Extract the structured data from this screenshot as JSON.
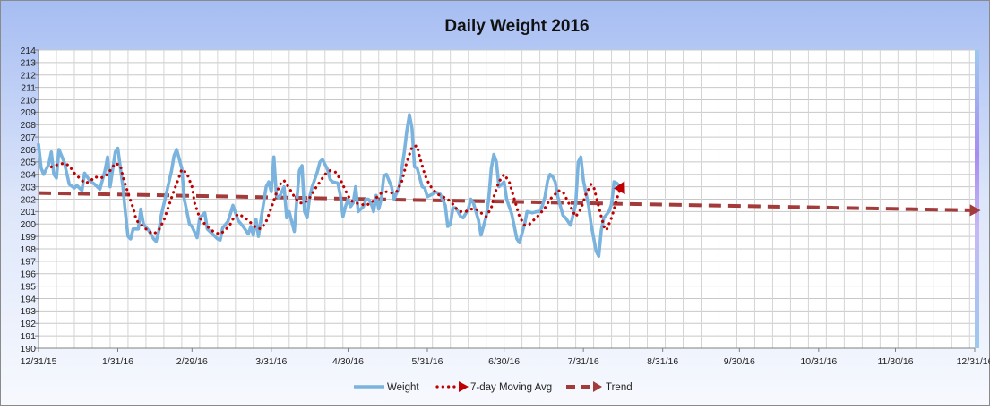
{
  "chart_data": {
    "type": "line",
    "title": "Daily Weight 2016",
    "xlabel": "",
    "ylabel": "",
    "ylim": [
      190,
      214
    ],
    "y_ticks": [
      190,
      191,
      192,
      193,
      194,
      195,
      196,
      197,
      198,
      199,
      200,
      201,
      202,
      203,
      204,
      205,
      206,
      207,
      208,
      209,
      210,
      211,
      212,
      213,
      214
    ],
    "x_range_days": [
      0,
      366
    ],
    "x_ticks": [
      {
        "label": "12/31/15",
        "day": 0
      },
      {
        "label": "1/31/16",
        "day": 31
      },
      {
        "label": "2/29/16",
        "day": 60
      },
      {
        "label": "3/31/16",
        "day": 91
      },
      {
        "label": "4/30/16",
        "day": 121
      },
      {
        "label": "5/31/16",
        "day": 152
      },
      {
        "label": "6/30/16",
        "day": 182
      },
      {
        "label": "7/31/16",
        "day": 213
      },
      {
        "label": "8/31/16",
        "day": 244
      },
      {
        "label": "9/30/16",
        "day": 274
      },
      {
        "label": "10/31/16",
        "day": 305
      },
      {
        "label": "11/30/16",
        "day": 335
      },
      {
        "label": "12/31/16",
        "day": 366
      }
    ],
    "grid": true,
    "legend_position": "bottom",
    "series": [
      {
        "name": "Weight",
        "style": "solid",
        "color": "#7ab3dd",
        "points": [
          [
            0,
            206.4
          ],
          [
            1,
            204.5
          ],
          [
            2,
            204.0
          ],
          [
            4,
            204.8
          ],
          [
            5,
            205.8
          ],
          [
            6,
            204.0
          ],
          [
            7,
            203.7
          ],
          [
            8,
            206.0
          ],
          [
            10,
            205.0
          ],
          [
            12,
            203.2
          ],
          [
            14,
            202.9
          ],
          [
            15,
            203.1
          ],
          [
            17,
            202.7
          ],
          [
            18,
            204.1
          ],
          [
            20,
            203.5
          ],
          [
            22,
            203.2
          ],
          [
            24,
            202.8
          ],
          [
            26,
            204.3
          ],
          [
            27,
            205.4
          ],
          [
            28,
            203.0
          ],
          [
            30,
            205.8
          ],
          [
            31,
            206.1
          ],
          [
            33,
            203.0
          ],
          [
            34,
            200.8
          ],
          [
            35,
            199.0
          ],
          [
            36,
            198.8
          ],
          [
            37,
            199.6
          ],
          [
            39,
            199.6
          ],
          [
            40,
            201.2
          ],
          [
            41,
            200.0
          ],
          [
            43,
            199.5
          ],
          [
            45,
            198.8
          ],
          [
            46,
            198.6
          ],
          [
            47,
            199.4
          ],
          [
            48,
            200.7
          ],
          [
            50,
            202.5
          ],
          [
            52,
            204.3
          ],
          [
            53,
            205.5
          ],
          [
            54,
            206.0
          ],
          [
            56,
            204.5
          ],
          [
            57,
            202.0
          ],
          [
            59,
            200.0
          ],
          [
            60,
            199.8
          ],
          [
            62,
            198.9
          ],
          [
            63,
            200.5
          ],
          [
            65,
            200.9
          ],
          [
            66,
            199.6
          ],
          [
            68,
            199.2
          ],
          [
            69,
            199.0
          ],
          [
            70,
            198.8
          ],
          [
            71,
            198.7
          ],
          [
            72,
            199.7
          ],
          [
            74,
            200.2
          ],
          [
            75,
            200.8
          ],
          [
            76,
            201.5
          ],
          [
            78,
            200.3
          ],
          [
            80,
            199.8
          ],
          [
            82,
            199.2
          ],
          [
            83,
            199.8
          ],
          [
            84,
            199.1
          ],
          [
            85,
            200.4
          ],
          [
            86,
            199.0
          ],
          [
            87,
            200.4
          ],
          [
            89,
            203.0
          ],
          [
            90,
            203.4
          ],
          [
            91,
            202.6
          ],
          [
            92,
            205.4
          ],
          [
            93,
            202.3
          ],
          [
            94,
            202.1
          ],
          [
            96,
            203.0
          ],
          [
            97,
            200.5
          ],
          [
            98,
            201.0
          ],
          [
            100,
            199.4
          ],
          [
            101,
            202.0
          ],
          [
            102,
            204.3
          ],
          [
            103,
            204.7
          ],
          [
            104,
            201.0
          ],
          [
            105,
            200.5
          ],
          [
            106,
            202.2
          ],
          [
            107,
            203.0
          ],
          [
            109,
            204.2
          ],
          [
            110,
            205.0
          ],
          [
            111,
            205.2
          ],
          [
            113,
            204.4
          ],
          [
            114,
            203.6
          ],
          [
            115,
            203.4
          ],
          [
            117,
            203.3
          ],
          [
            118,
            202.3
          ],
          [
            119,
            200.6
          ],
          [
            120,
            201.4
          ],
          [
            121,
            202.0
          ],
          [
            122,
            201.4
          ],
          [
            123,
            201.7
          ],
          [
            124,
            203.0
          ],
          [
            125,
            201.0
          ],
          [
            127,
            201.4
          ],
          [
            128,
            202.0
          ],
          [
            129,
            202.0
          ],
          [
            130,
            201.7
          ],
          [
            131,
            201.0
          ],
          [
            132,
            202.3
          ],
          [
            133,
            201.2
          ],
          [
            134,
            202.0
          ],
          [
            135,
            203.9
          ],
          [
            136,
            204.0
          ],
          [
            138,
            203.0
          ],
          [
            139,
            202.0
          ],
          [
            141,
            203.0
          ],
          [
            143,
            205.8
          ],
          [
            144,
            207.5
          ],
          [
            145,
            208.8
          ],
          [
            146,
            207.7
          ],
          [
            147,
            204.6
          ],
          [
            148,
            204.5
          ],
          [
            150,
            203.0
          ],
          [
            151,
            202.9
          ],
          [
            152,
            202.2
          ],
          [
            154,
            202.4
          ],
          [
            155,
            202.6
          ],
          [
            157,
            202.4
          ],
          [
            159,
            201.5
          ],
          [
            160,
            199.8
          ],
          [
            161,
            200.0
          ],
          [
            162,
            201.3
          ],
          [
            163,
            201.3
          ],
          [
            164,
            201.0
          ],
          [
            165,
            200.6
          ],
          [
            166,
            200.5
          ],
          [
            168,
            201.2
          ],
          [
            169,
            202.0
          ],
          [
            170,
            201.7
          ],
          [
            172,
            200.3
          ],
          [
            173,
            199.1
          ],
          [
            175,
            200.6
          ],
          [
            176,
            202.0
          ],
          [
            177,
            204.5
          ],
          [
            178,
            205.6
          ],
          [
            179,
            205.0
          ],
          [
            180,
            203.0
          ],
          [
            181,
            203.2
          ],
          [
            182,
            203.4
          ],
          [
            183,
            202.0
          ],
          [
            185,
            200.8
          ],
          [
            187,
            198.8
          ],
          [
            188,
            198.5
          ],
          [
            190,
            200.0
          ],
          [
            191,
            201.0
          ],
          [
            193,
            200.9
          ],
          [
            195,
            201.0
          ],
          [
            196,
            201.0
          ],
          [
            197,
            201.5
          ],
          [
            198,
            202.2
          ],
          [
            199,
            203.5
          ],
          [
            200,
            204.0
          ],
          [
            201,
            203.8
          ],
          [
            202,
            203.4
          ],
          [
            203,
            202.2
          ],
          [
            205,
            200.7
          ],
          [
            206,
            200.5
          ],
          [
            208,
            199.9
          ],
          [
            210,
            201.6
          ],
          [
            211,
            205.0
          ],
          [
            212,
            205.4
          ],
          [
            213,
            203.5
          ],
          [
            214,
            202.5
          ],
          [
            215,
            201.5
          ],
          [
            216,
            200.0
          ],
          [
            218,
            197.8
          ],
          [
            219,
            197.4
          ],
          [
            220,
            199.5
          ],
          [
            221,
            200.5
          ],
          [
            223,
            201.0
          ],
          [
            224,
            201.6
          ],
          [
            225,
            203.4
          ],
          [
            226,
            203.3
          ],
          [
            227,
            203.1
          ]
        ]
      },
      {
        "name": "7-day Moving Avg",
        "style": "dotted",
        "color": "#c00000",
        "points": [
          [
            5,
            204.6
          ],
          [
            6,
            204.7
          ],
          [
            8,
            204.8
          ],
          [
            10,
            204.9
          ],
          [
            12,
            204.7
          ],
          [
            14,
            204.1
          ],
          [
            16,
            203.7
          ],
          [
            18,
            203.3
          ],
          [
            20,
            203.4
          ],
          [
            22,
            203.8
          ],
          [
            24,
            203.7
          ],
          [
            26,
            203.8
          ],
          [
            28,
            204.3
          ],
          [
            30,
            204.9
          ],
          [
            32,
            204.7
          ],
          [
            33,
            203.8
          ],
          [
            35,
            202.5
          ],
          [
            37,
            201.3
          ],
          [
            38,
            200.5
          ],
          [
            39,
            200.1
          ],
          [
            41,
            199.8
          ],
          [
            43,
            199.4
          ],
          [
            45,
            199.2
          ],
          [
            47,
            199.5
          ],
          [
            49,
            200.3
          ],
          [
            51,
            201.5
          ],
          [
            53,
            202.7
          ],
          [
            55,
            203.8
          ],
          [
            56,
            204.4
          ],
          [
            58,
            204.1
          ],
          [
            60,
            203.0
          ],
          [
            61,
            201.7
          ],
          [
            63,
            200.5
          ],
          [
            65,
            200.0
          ],
          [
            67,
            199.6
          ],
          [
            69,
            199.3
          ],
          [
            71,
            199.2
          ],
          [
            73,
            199.5
          ],
          [
            75,
            200.0
          ],
          [
            76,
            200.4
          ],
          [
            78,
            200.8
          ],
          [
            80,
            200.6
          ],
          [
            82,
            200.3
          ],
          [
            84,
            199.9
          ],
          [
            85,
            199.7
          ],
          [
            87,
            199.6
          ],
          [
            89,
            200.2
          ],
          [
            91,
            201.3
          ],
          [
            93,
            202.5
          ],
          [
            95,
            203.4
          ],
          [
            96,
            203.5
          ],
          [
            98,
            202.9
          ],
          [
            100,
            202.2
          ],
          [
            102,
            201.7
          ],
          [
            104,
            201.7
          ],
          [
            106,
            202.1
          ],
          [
            108,
            202.8
          ],
          [
            110,
            203.4
          ],
          [
            112,
            204.0
          ],
          [
            114,
            204.3
          ],
          [
            116,
            204.2
          ],
          [
            118,
            203.6
          ],
          [
            120,
            202.7
          ],
          [
            122,
            201.9
          ],
          [
            124,
            201.7
          ],
          [
            126,
            201.6
          ],
          [
            128,
            201.5
          ],
          [
            130,
            201.7
          ],
          [
            132,
            202.1
          ],
          [
            134,
            202.5
          ],
          [
            136,
            202.6
          ],
          [
            138,
            202.5
          ],
          [
            140,
            202.6
          ],
          [
            142,
            203.4
          ],
          [
            144,
            205.0
          ],
          [
            146,
            206.2
          ],
          [
            148,
            206.3
          ],
          [
            149,
            205.4
          ],
          [
            151,
            204.0
          ],
          [
            152,
            203.5
          ],
          [
            154,
            202.8
          ],
          [
            156,
            202.4
          ],
          [
            158,
            202.2
          ],
          [
            160,
            202.0
          ],
          [
            162,
            201.6
          ],
          [
            163,
            201.3
          ],
          [
            165,
            201.0
          ],
          [
            167,
            201.0
          ],
          [
            169,
            201.2
          ],
          [
            171,
            201.2
          ],
          [
            173,
            200.9
          ],
          [
            175,
            200.6
          ],
          [
            177,
            201.3
          ],
          [
            178,
            202.2
          ],
          [
            180,
            203.4
          ],
          [
            182,
            204.0
          ],
          [
            184,
            203.4
          ],
          [
            186,
            202.0
          ],
          [
            188,
            200.6
          ],
          [
            190,
            199.9
          ],
          [
            192,
            200.0
          ],
          [
            194,
            200.4
          ],
          [
            196,
            200.8
          ],
          [
            198,
            201.3
          ],
          [
            200,
            202.0
          ],
          [
            202,
            202.4
          ],
          [
            203,
            202.7
          ],
          [
            205,
            202.6
          ],
          [
            207,
            201.8
          ],
          [
            209,
            201.0
          ],
          [
            210,
            200.6
          ],
          [
            212,
            201.2
          ],
          [
            214,
            202.4
          ],
          [
            216,
            203.2
          ],
          [
            217,
            203.0
          ],
          [
            218,
            202.2
          ],
          [
            220,
            200.6
          ],
          [
            221,
            199.8
          ],
          [
            222,
            199.5
          ],
          [
            224,
            200.5
          ],
          [
            225,
            201.2
          ],
          [
            226,
            202.0
          ],
          [
            227,
            202.6
          ],
          [
            228,
            203.0
          ]
        ]
      },
      {
        "name": "Trend",
        "style": "dashed",
        "color": "#a33b3b",
        "points": [
          [
            0,
            202.5
          ],
          [
            366,
            201.1
          ]
        ]
      }
    ]
  }
}
